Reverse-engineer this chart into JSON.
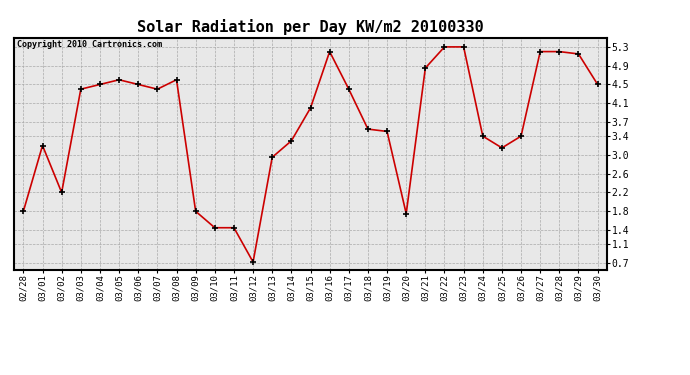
{
  "title": "Solar Radiation per Day KW/m2 20100330",
  "copyright": "Copyright 2010 Cartronics.com",
  "dates": [
    "02/28",
    "03/01",
    "03/02",
    "03/03",
    "03/04",
    "03/05",
    "03/06",
    "03/07",
    "03/08",
    "03/09",
    "03/10",
    "03/11",
    "03/12",
    "03/13",
    "03/14",
    "03/15",
    "03/16",
    "03/17",
    "03/18",
    "03/19",
    "03/20",
    "03/21",
    "03/22",
    "03/23",
    "03/24",
    "03/25",
    "03/26",
    "03/27",
    "03/28",
    "03/29",
    "03/30"
  ],
  "values": [
    1.8,
    3.2,
    2.2,
    4.4,
    4.5,
    4.6,
    4.5,
    4.4,
    4.6,
    1.8,
    1.45,
    1.45,
    0.72,
    2.95,
    3.3,
    4.0,
    5.2,
    4.4,
    3.55,
    3.5,
    1.75,
    4.85,
    5.3,
    5.3,
    3.4,
    3.15,
    3.4,
    5.2,
    5.2,
    5.15,
    4.5
  ],
  "line_color": "#cc0000",
  "marker_color": "#000000",
  "bg_color": "#ffffff",
  "plot_bg_color": "#e8e8e8",
  "grid_color": "#aaaaaa",
  "yticks": [
    0.7,
    1.1,
    1.4,
    1.8,
    2.2,
    2.6,
    3.0,
    3.4,
    3.7,
    4.1,
    4.5,
    4.9,
    5.3
  ],
  "ylim": [
    0.55,
    5.5
  ],
  "title_fontsize": 11,
  "copyright_fontsize": 6,
  "tick_fontsize": 6.5,
  "ytick_fontsize": 7
}
